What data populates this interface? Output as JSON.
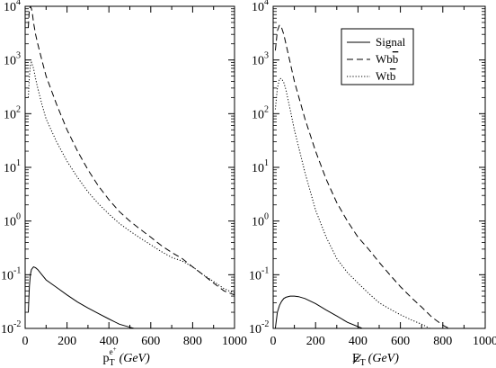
{
  "chart_data": [
    {
      "type": "line",
      "xlabel": "p_T^{e+} (GeV)",
      "xlabel_parts": {
        "main": "p",
        "sub": "T",
        "sup": "e",
        "supsup": "+",
        "unit": "(GeV)"
      },
      "ylabel": "",
      "xlim": [
        0,
        1000
      ],
      "ylim": [
        0.01,
        10000
      ],
      "yscale": "log",
      "xticks": [
        "0",
        "200",
        "400",
        "600",
        "800",
        "1000"
      ],
      "ytick_labels": [
        {
          "base": "10",
          "exp": "-2"
        },
        {
          "base": "10",
          "exp": "-1"
        },
        {
          "base": "10",
          "exp": "0"
        },
        {
          "base": "10",
          "exp": "1"
        },
        {
          "base": "10",
          "exp": "2"
        },
        {
          "base": "10",
          "exp": "3"
        },
        {
          "base": "10",
          "exp": "4"
        }
      ],
      "grid": false,
      "series": [
        {
          "name": "Signal",
          "style": "solid",
          "x": [
            15,
            20,
            25,
            30,
            40,
            50,
            60,
            80,
            100,
            150,
            200,
            250,
            300,
            350,
            400,
            450,
            500,
            520
          ],
          "y": [
            0.02,
            0.06,
            0.1,
            0.125,
            0.14,
            0.135,
            0.125,
            0.1,
            0.08,
            0.058,
            0.042,
            0.031,
            0.024,
            0.019,
            0.015,
            0.012,
            0.0105,
            0.01
          ]
        },
        {
          "name": "Wbb̄",
          "style": "dashed",
          "x": [
            15,
            20,
            25,
            30,
            35,
            40,
            50,
            60,
            80,
            100,
            150,
            200,
            250,
            300,
            350,
            400,
            450,
            500,
            550,
            600,
            650,
            700,
            750,
            800,
            850,
            900,
            950,
            1000
          ],
          "y": [
            4000,
            9000,
            10000,
            9000,
            7000,
            5000,
            3000,
            2000,
            1000,
            500,
            150,
            50,
            20,
            9,
            4.5,
            2.5,
            1.5,
            1.0,
            0.7,
            0.5,
            0.35,
            0.26,
            0.2,
            0.14,
            0.1,
            0.07,
            0.05,
            0.042
          ]
        },
        {
          "name": "Wtb̄",
          "style": "dotted",
          "x": [
            15,
            20,
            25,
            30,
            40,
            50,
            60,
            80,
            100,
            150,
            200,
            250,
            300,
            350,
            400,
            450,
            500,
            550,
            600,
            650,
            700,
            750,
            800,
            850,
            900,
            950,
            1000
          ],
          "y": [
            200,
            500,
            800,
            900,
            700,
            450,
            300,
            150,
            80,
            30,
            13,
            6.5,
            3.5,
            2.1,
            1.35,
            0.9,
            0.65,
            0.48,
            0.36,
            0.27,
            0.21,
            0.18,
            0.14,
            0.1,
            0.075,
            0.055,
            0.045
          ]
        }
      ]
    },
    {
      "type": "line",
      "xlabel": "E_T-miss (GeV)",
      "xlabel_parts": {
        "main": "E",
        "sub": "T",
        "unit": "(GeV)"
      },
      "ylabel": "",
      "xlim": [
        0,
        1000
      ],
      "ylim": [
        0.01,
        10000
      ],
      "yscale": "log",
      "xticks": [
        "0",
        "200",
        "400",
        "600",
        "800",
        "1000"
      ],
      "ytick_labels": [
        {
          "base": "10",
          "exp": "-2"
        },
        {
          "base": "10",
          "exp": "-1"
        },
        {
          "base": "10",
          "exp": "0"
        },
        {
          "base": "10",
          "exp": "1"
        },
        {
          "base": "10",
          "exp": "2"
        },
        {
          "base": "10",
          "exp": "3"
        },
        {
          "base": "10",
          "exp": "4"
        }
      ],
      "grid": false,
      "legend": {
        "position": "top-right",
        "entries": [
          {
            "label": "Signal",
            "style": "solid"
          },
          {
            "label_main": "Wb",
            "label_bar": "b",
            "style": "dashed"
          },
          {
            "label_main": "Wt",
            "label_bar": "b",
            "style": "dotted"
          }
        ]
      },
      "series": [
        {
          "name": "Signal",
          "style": "solid",
          "x": [
            10,
            20,
            30,
            40,
            50,
            60,
            80,
            100,
            120,
            150,
            200,
            250,
            300,
            350,
            400,
            420
          ],
          "y": [
            0.01,
            0.02,
            0.027,
            0.032,
            0.036,
            0.038,
            0.04,
            0.04,
            0.039,
            0.036,
            0.029,
            0.022,
            0.017,
            0.013,
            0.0108,
            0.01
          ]
        },
        {
          "name": "Wbb̄",
          "style": "dashed",
          "x": [
            10,
            20,
            30,
            40,
            50,
            60,
            80,
            100,
            150,
            200,
            250,
            300,
            350,
            400,
            450,
            500,
            550,
            600,
            650,
            700,
            750,
            800,
            830
          ],
          "y": [
            1500,
            3500,
            4500,
            4000,
            3000,
            2000,
            900,
            400,
            80,
            20,
            6,
            2.2,
            1.0,
            0.5,
            0.3,
            0.17,
            0.1,
            0.06,
            0.038,
            0.025,
            0.016,
            0.0115,
            0.01
          ]
        },
        {
          "name": "Wtb̄",
          "style": "dotted",
          "x": [
            10,
            20,
            30,
            40,
            50,
            60,
            80,
            100,
            150,
            200,
            250,
            300,
            350,
            400,
            450,
            500,
            550,
            600,
            650,
            700,
            750
          ],
          "y": [
            120,
            300,
            450,
            450,
            380,
            280,
            120,
            50,
            8,
            1.6,
            0.5,
            0.2,
            0.11,
            0.07,
            0.045,
            0.03,
            0.023,
            0.018,
            0.0145,
            0.012,
            0.0095
          ]
        }
      ]
    }
  ]
}
